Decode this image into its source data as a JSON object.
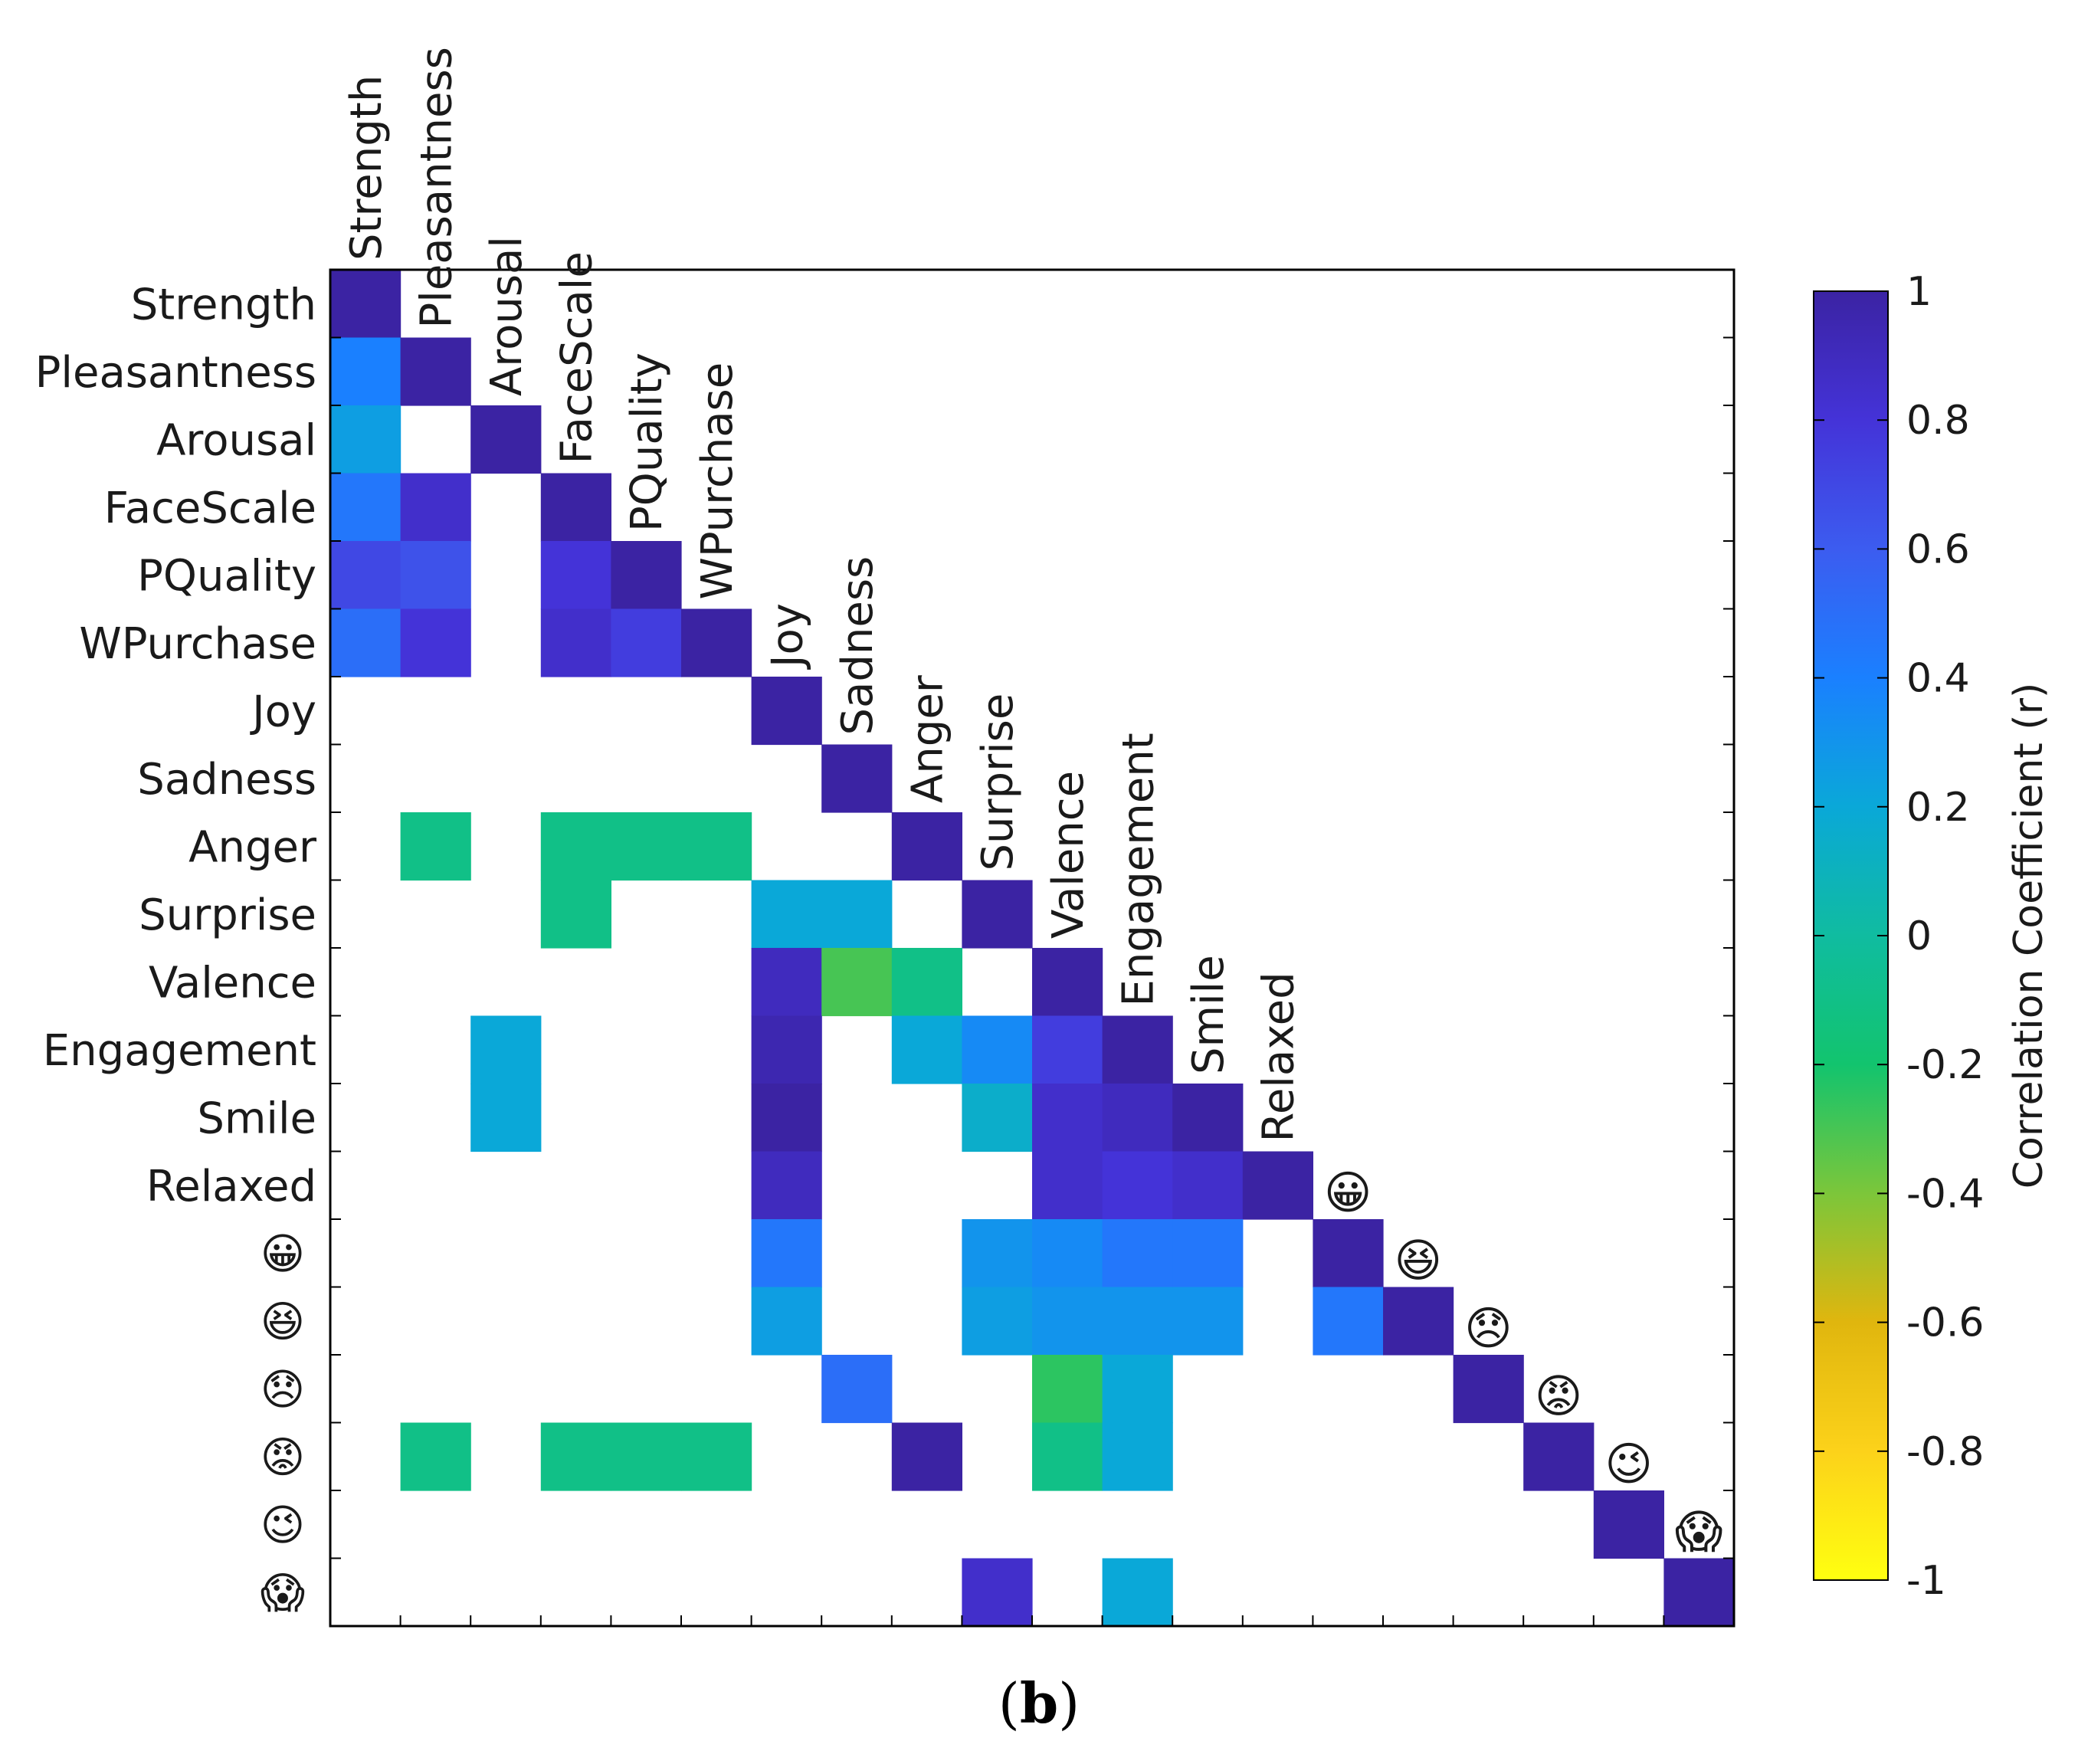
{
  "chart_data": {
    "type": "heatmap",
    "row_labels": [
      "Strength",
      "Pleasantness",
      "Arousal",
      "FaceScale",
      "PQuality",
      "WPurchase",
      "Joy",
      "Sadness",
      "Anger",
      "Surprise",
      "Valence",
      "Engagement",
      "Smile",
      "Relaxed",
      "😀",
      "😆",
      "😞",
      "😡",
      "😉",
      "😱"
    ],
    "col_labels": [
      "Strength",
      "Pleasantness",
      "Arousal",
      "FaceScale",
      "PQuality",
      "WPurchase",
      "Joy",
      "Sadness",
      "Anger",
      "Surprise",
      "Valence",
      "Engagement",
      "Smile",
      "Relaxed",
      "😀",
      "😆",
      "😞",
      "😡",
      "😉",
      "😱"
    ],
    "cells": [
      [
        0,
        0,
        1.0
      ],
      [
        1,
        0,
        0.4
      ],
      [
        1,
        1,
        1.0
      ],
      [
        2,
        0,
        0.25
      ],
      [
        2,
        2,
        1.0
      ],
      [
        3,
        0,
        0.45
      ],
      [
        3,
        1,
        0.85
      ],
      [
        3,
        3,
        1.0
      ],
      [
        4,
        0,
        0.7
      ],
      [
        4,
        1,
        0.65
      ],
      [
        4,
        3,
        0.8
      ],
      [
        4,
        4,
        1.0
      ],
      [
        5,
        0,
        0.5
      ],
      [
        5,
        1,
        0.8
      ],
      [
        5,
        3,
        0.85
      ],
      [
        5,
        4,
        0.75
      ],
      [
        5,
        5,
        1.0
      ],
      [
        6,
        6,
        1.0
      ],
      [
        7,
        7,
        1.0
      ],
      [
        8,
        1,
        -0.1
      ],
      [
        8,
        3,
        -0.1
      ],
      [
        8,
        4,
        -0.1
      ],
      [
        8,
        5,
        -0.1
      ],
      [
        8,
        8,
        1.0
      ],
      [
        9,
        3,
        -0.1
      ],
      [
        9,
        6,
        0.2
      ],
      [
        9,
        7,
        0.2
      ],
      [
        9,
        9,
        1.0
      ],
      [
        10,
        6,
        0.9
      ],
      [
        10,
        7,
        -0.3
      ],
      [
        10,
        8,
        -0.1
      ],
      [
        10,
        10,
        1.0
      ],
      [
        11,
        2,
        0.2
      ],
      [
        11,
        6,
        0.95
      ],
      [
        11,
        8,
        0.2
      ],
      [
        11,
        9,
        0.35
      ],
      [
        11,
        10,
        0.75
      ],
      [
        11,
        11,
        1.0
      ],
      [
        12,
        2,
        0.2
      ],
      [
        12,
        6,
        1.0
      ],
      [
        12,
        9,
        0.15
      ],
      [
        12,
        10,
        0.85
      ],
      [
        12,
        11,
        0.9
      ],
      [
        12,
        12,
        1.0
      ],
      [
        13,
        6,
        0.9
      ],
      [
        13,
        10,
        0.85
      ],
      [
        13,
        11,
        0.8
      ],
      [
        13,
        12,
        0.85
      ],
      [
        13,
        13,
        1.0
      ],
      [
        14,
        6,
        0.45
      ],
      [
        14,
        9,
        0.3
      ],
      [
        14,
        10,
        0.35
      ],
      [
        14,
        11,
        0.45
      ],
      [
        14,
        12,
        0.45
      ],
      [
        14,
        14,
        1.0
      ],
      [
        15,
        6,
        0.25
      ],
      [
        15,
        9,
        0.25
      ],
      [
        15,
        10,
        0.3
      ],
      [
        15,
        11,
        0.3
      ],
      [
        15,
        12,
        0.3
      ],
      [
        15,
        14,
        0.45
      ],
      [
        15,
        15,
        1.0
      ],
      [
        16,
        7,
        0.5
      ],
      [
        16,
        10,
        -0.25
      ],
      [
        16,
        11,
        0.2
      ],
      [
        16,
        16,
        1.0
      ],
      [
        17,
        1,
        -0.1
      ],
      [
        17,
        3,
        -0.1
      ],
      [
        17,
        4,
        -0.1
      ],
      [
        17,
        5,
        -0.1
      ],
      [
        17,
        8,
        1.0
      ],
      [
        17,
        10,
        -0.1
      ],
      [
        17,
        11,
        0.2
      ],
      [
        17,
        17,
        1.0
      ],
      [
        18,
        18,
        1.0
      ],
      [
        19,
        9,
        0.85
      ],
      [
        19,
        11,
        0.2
      ],
      [
        19,
        19,
        1.0
      ]
    ],
    "diagonal_emoji_labels": [
      "😀",
      "😆",
      "😞",
      "😡",
      "😉",
      "😱"
    ],
    "colorbar": {
      "ticks": [
        "1",
        "0.8",
        "0.6",
        "0.4",
        "0.2",
        "0",
        "-0.2",
        "-0.4",
        "-0.6",
        "-0.8",
        "-1"
      ],
      "label": "Correlation Coefficient (r)",
      "range": [
        -1,
        1
      ],
      "stops": [
        [
          -1.0,
          "#ffff10"
        ],
        [
          -0.8,
          "#fcd21a"
        ],
        [
          -0.6,
          "#e0b60e"
        ],
        [
          -0.4,
          "#7cc63a"
        ],
        [
          -0.2,
          "#12c46e"
        ],
        [
          0.0,
          "#10bca0"
        ],
        [
          0.2,
          "#0aa8d8"
        ],
        [
          0.4,
          "#1a80ff"
        ],
        [
          0.6,
          "#3c5cf0"
        ],
        [
          0.8,
          "#4433d8"
        ],
        [
          1.0,
          "#3b23a3"
        ]
      ]
    },
    "grid": false
  },
  "caption": {
    "open": "(",
    "letter": "b",
    "close": ")"
  }
}
